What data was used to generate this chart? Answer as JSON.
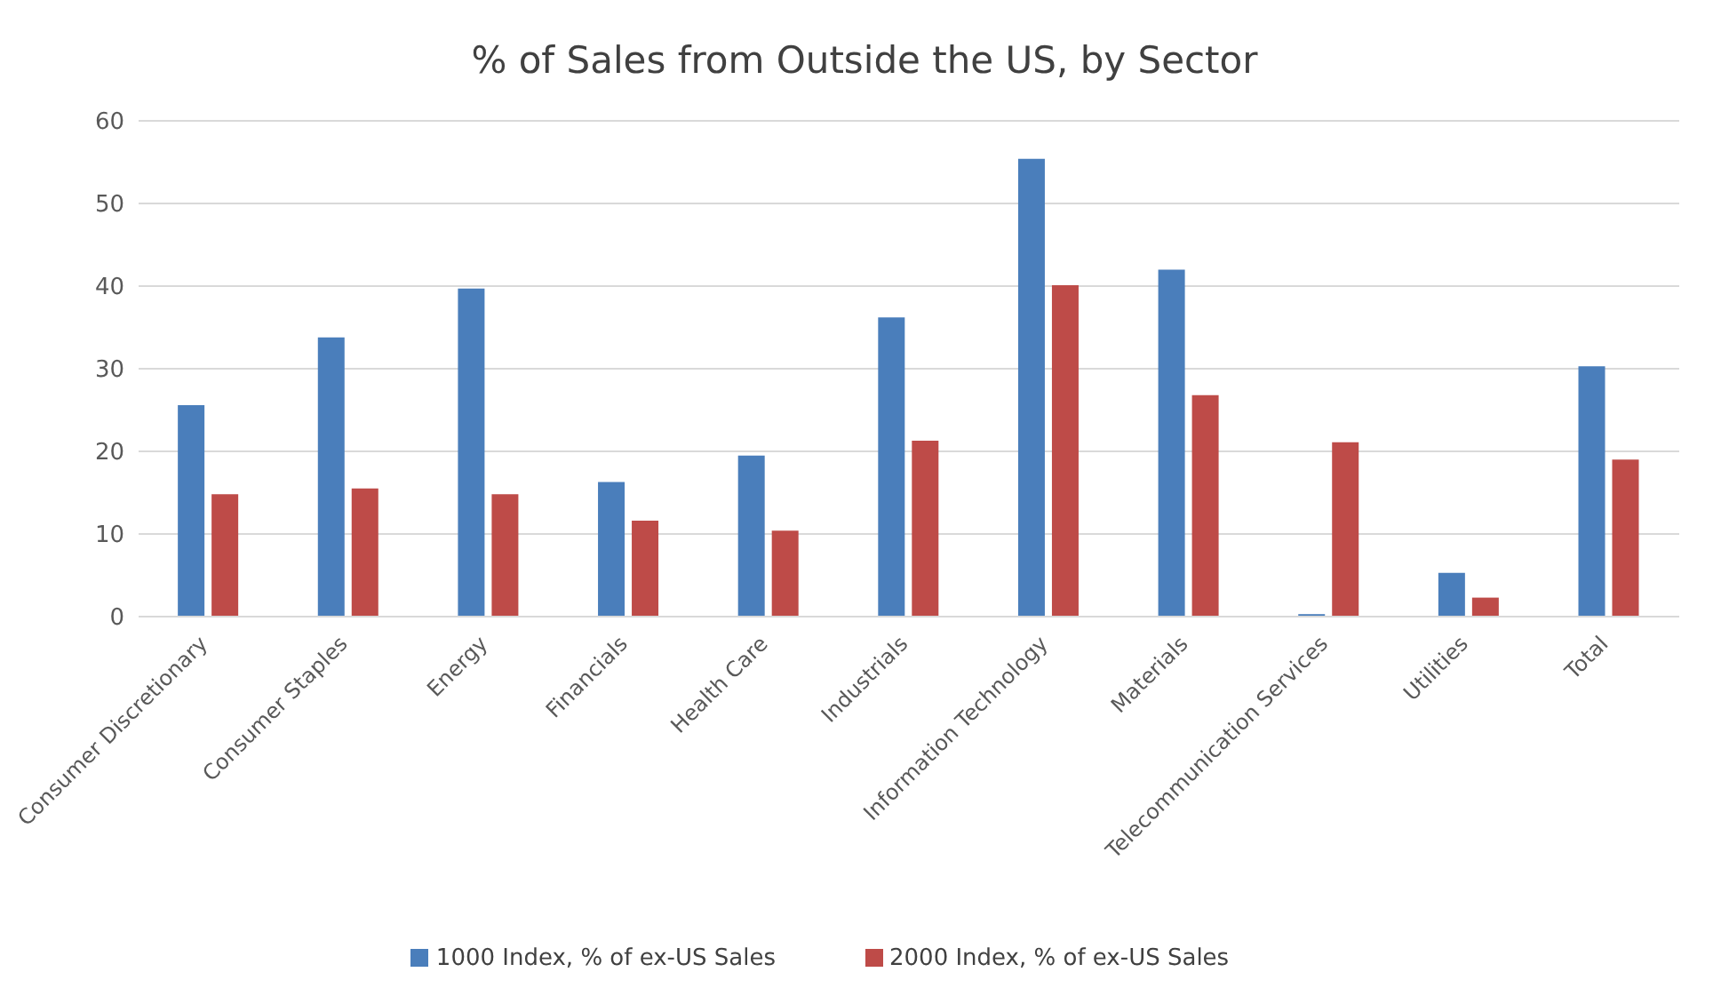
{
  "chart_data": {
    "type": "bar",
    "title": "% of Sales from Outside the US, by Sector",
    "categories": [
      "Consumer Discretionary",
      "Consumer Staples",
      "Energy",
      "Financials",
      "Health Care",
      "Industrials",
      "Information Technology",
      "Materials",
      "Telecommunication Services",
      "Utilities",
      "Total"
    ],
    "series": [
      {
        "name": "1000 Index, % of ex-US Sales",
        "color": "#4a7ebb",
        "values": [
          25.6,
          33.8,
          39.7,
          16.3,
          19.5,
          36.2,
          55.4,
          42.0,
          0.3,
          5.3,
          30.3
        ]
      },
      {
        "name": "2000 Index, % of ex-US Sales",
        "color": "#be4b48",
        "values": [
          14.8,
          15.5,
          14.8,
          11.6,
          10.4,
          21.3,
          40.1,
          26.8,
          21.1,
          2.3,
          19.0
        ]
      }
    ],
    "ylim": [
      0,
      60
    ],
    "yticks": [
      0,
      10,
      20,
      30,
      40,
      50,
      60
    ],
    "grid": "y",
    "legend": "bottom"
  }
}
